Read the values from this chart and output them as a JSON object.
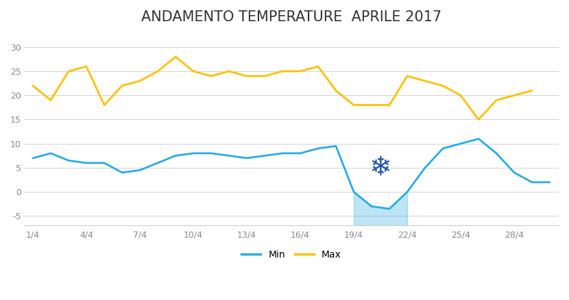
{
  "title": "ANDAMENTO TEMPERATURE  APRILE 2017",
  "x_labels": [
    "1/4",
    "4/4",
    "7/4",
    "10/4",
    "13/4",
    "16/4",
    "19/4",
    "22/4",
    "25/4",
    "28/4"
  ],
  "xtick_positions": [
    1,
    4,
    7,
    10,
    13,
    16,
    19,
    22,
    25,
    28
  ],
  "min_x": [
    1,
    2,
    3,
    4,
    5,
    6,
    7,
    8,
    9,
    10,
    11,
    12,
    13,
    14,
    15,
    16,
    17,
    18,
    19,
    20,
    21,
    22,
    23,
    24,
    25,
    26,
    27,
    28,
    29,
    30
  ],
  "min_y": [
    7,
    8,
    6.5,
    6,
    6,
    4,
    4.5,
    6,
    7.5,
    8,
    8,
    7.5,
    7,
    7.5,
    8,
    8,
    9,
    9.5,
    0,
    -3,
    -3.5,
    0,
    5,
    9,
    10,
    11,
    8,
    4,
    2,
    2
  ],
  "max_x": [
    1,
    2,
    3,
    4,
    5,
    6,
    7,
    8,
    9,
    10,
    11,
    12,
    13,
    14,
    15,
    16,
    17,
    18,
    19,
    20,
    21,
    22,
    23,
    24,
    25,
    26,
    27,
    28,
    29
  ],
  "max_y": [
    22,
    19,
    25,
    26,
    18,
    22,
    23,
    25,
    28,
    25,
    24,
    25,
    24,
    24,
    25,
    25,
    26,
    21,
    18,
    18,
    18,
    24,
    23,
    22,
    20,
    15,
    19,
    20,
    21
  ],
  "min_color": "#29ABE2",
  "max_color": "#FFC000",
  "background_color": "#FFFFFF",
  "ylim": [
    -7,
    33
  ],
  "yticks": [
    -5,
    0,
    5,
    10,
    15,
    20,
    25,
    30
  ],
  "xlim": [
    0.5,
    30.5
  ],
  "title_fontsize": 15,
  "snowflake_x": 20.5,
  "snowflake_y": 5,
  "snowflake_size": 28,
  "legend_min": "Min",
  "legend_max": "Max",
  "line_width": 2.0
}
